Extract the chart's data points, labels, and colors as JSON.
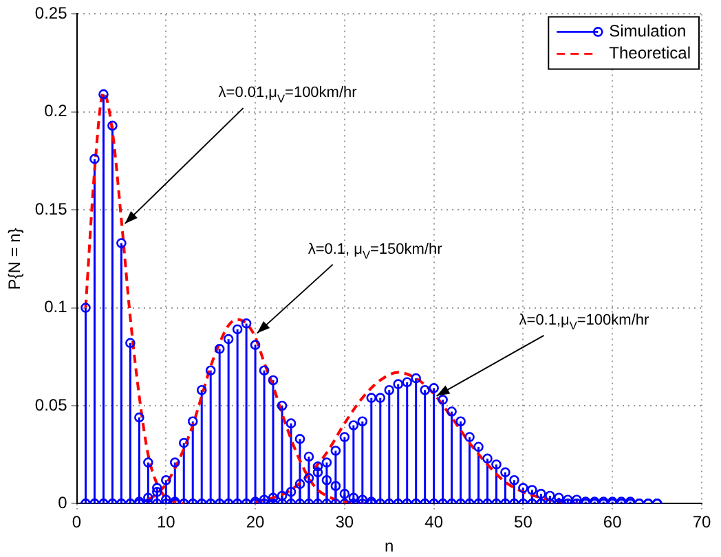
{
  "chart_data": {
    "type": "lollipop",
    "xlabel": "n",
    "ylabel": "P{N = n}",
    "x": [
      1,
      2,
      3,
      4,
      5,
      6,
      7,
      8,
      9,
      10,
      11,
      12,
      13,
      14,
      15,
      16,
      17,
      18,
      19,
      20,
      21,
      22,
      23,
      24,
      25,
      26,
      27,
      28,
      29,
      30,
      31,
      32,
      33,
      34,
      35,
      36,
      37,
      38,
      39,
      40,
      41,
      42,
      43,
      44,
      45,
      46,
      47,
      48,
      49,
      50,
      51,
      52,
      53,
      54,
      55,
      56,
      57,
      58,
      59,
      60,
      61,
      62,
      63,
      64,
      65
    ],
    "series": [
      {
        "name": "Simulation",
        "color": "#0000ff",
        "marker": "circle",
        "values": [
          0.1,
          0.176,
          0.209,
          0.193,
          0.133,
          0.082,
          0.044,
          0.021,
          0.008,
          0.002,
          0.001,
          0,
          0,
          0,
          0,
          0,
          0,
          0,
          0,
          0,
          0,
          0,
          0,
          0,
          0,
          0,
          0,
          0,
          0,
          0,
          0,
          0,
          0,
          0,
          0,
          0,
          0,
          0,
          0,
          0,
          0,
          0,
          0,
          0,
          0,
          0,
          0,
          0,
          0,
          0,
          0,
          0,
          0,
          0,
          0,
          0,
          0,
          0,
          0,
          0,
          0,
          0,
          0,
          0,
          0
        ]
      },
      {
        "color": "#0000ff",
        "marker": "circle",
        "values": [
          0,
          0,
          0,
          0,
          0,
          0,
          0.001,
          0.003,
          0.006,
          0.012,
          0.021,
          0.031,
          0.042,
          0.058,
          0.068,
          0.079,
          0.084,
          0.089,
          0.092,
          0.081,
          0.068,
          0.063,
          0.05,
          0.041,
          0.033,
          0.024,
          0.019,
          0.012,
          0.009,
          0.005,
          0.003,
          0.002,
          0.001,
          0,
          0,
          0,
          0,
          0,
          0,
          0,
          0,
          0,
          0,
          0,
          0,
          0,
          0,
          0,
          0,
          0,
          0,
          0,
          0,
          0,
          0,
          0,
          0,
          0,
          0,
          0,
          0,
          0,
          0,
          0,
          0
        ]
      },
      {
        "color": "#0000ff",
        "marker": "circle",
        "values": [
          0,
          0,
          0,
          0,
          0,
          0,
          0,
          0,
          0,
          0,
          0,
          0,
          0,
          0,
          0,
          0,
          0,
          0,
          0,
          0.001,
          0.002,
          0.003,
          0.004,
          0.006,
          0.01,
          0.013,
          0.016,
          0.021,
          0.027,
          0.034,
          0.04,
          0.042,
          0.054,
          0.054,
          0.058,
          0.061,
          0.062,
          0.064,
          0.058,
          0.059,
          0.053,
          0.047,
          0.042,
          0.034,
          0.029,
          0.023,
          0.02,
          0.016,
          0.012,
          0.008,
          0.007,
          0.005,
          0.004,
          0.003,
          0.002,
          0.002,
          0.001,
          0.001,
          0.001,
          0.001,
          0.001,
          0.001,
          0,
          0,
          0
        ]
      },
      {
        "name": "Theoretical",
        "type": "line",
        "color": "#ff0000",
        "line_style": "dashed",
        "marker": "none",
        "x": [
          1,
          2,
          3,
          4,
          5,
          6,
          7,
          8,
          9,
          10,
          11,
          12
        ],
        "values": [
          0.1,
          0.17,
          0.21,
          0.19,
          0.145,
          0.095,
          0.055,
          0.025,
          0.01,
          0.003,
          0.001,
          0
        ]
      },
      {
        "type": "line",
        "color": "#ff0000",
        "line_style": "dashed",
        "marker": "none",
        "x": [
          8,
          9,
          10,
          11,
          12,
          13,
          14,
          15,
          16,
          17,
          18,
          19,
          20,
          21,
          22,
          23,
          24,
          25,
          26,
          27,
          28,
          29,
          30,
          32
        ],
        "values": [
          0.002,
          0.005,
          0.01,
          0.018,
          0.028,
          0.04,
          0.055,
          0.07,
          0.082,
          0.091,
          0.094,
          0.092,
          0.085,
          0.072,
          0.06,
          0.046,
          0.033,
          0.022,
          0.013,
          0.007,
          0.004,
          0.002,
          0.001,
          0
        ]
      },
      {
        "type": "line",
        "color": "#ff0000",
        "line_style": "dashed",
        "marker": "none",
        "x": [
          20,
          22,
          24,
          26,
          28,
          30,
          32,
          34,
          36,
          38,
          40,
          42,
          44,
          46,
          48,
          50,
          52,
          54,
          56
        ],
        "values": [
          0.001,
          0.003,
          0.007,
          0.015,
          0.026,
          0.041,
          0.054,
          0.063,
          0.067,
          0.064,
          0.056,
          0.044,
          0.031,
          0.02,
          0.011,
          0.006,
          0.003,
          0.001,
          0
        ]
      }
    ],
    "xlim": [
      0,
      70
    ],
    "xticks": [
      0,
      10,
      20,
      30,
      40,
      50,
      60,
      70
    ],
    "ylim": [
      0,
      0.25
    ],
    "yticks": [
      0,
      0.05,
      0.1,
      0.15,
      0.2,
      0.25
    ],
    "grid": true,
    "legend": "top right",
    "annotations": [
      {
        "text": "λ=0.01,μ$_{V}$=100km/hr",
        "x": 5.4,
        "y": 0.143
      },
      {
        "text": "λ=0.1, μ$_{V}$=150km/hr",
        "x": 20.2,
        "y": 0.087
      },
      {
        "text": "λ=0.1,μ$_{V}$=100km/hr",
        "x": 40.3,
        "y": 0.055
      }
    ]
  }
}
